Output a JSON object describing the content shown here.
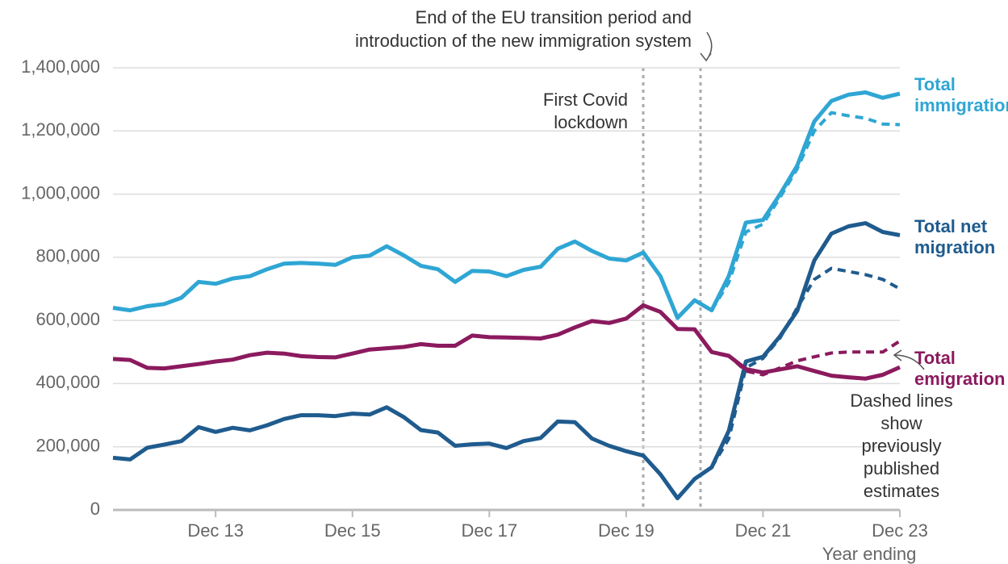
{
  "chart_data": {
    "type": "line",
    "categories": [
      null,
      null,
      null,
      null,
      null,
      null,
      "Dec 13",
      null,
      null,
      null,
      null,
      null,
      null,
      null,
      "Dec 15",
      null,
      null,
      null,
      null,
      null,
      null,
      null,
      "Dec 17",
      null,
      null,
      null,
      null,
      null,
      null,
      null,
      "Dec 19",
      null,
      null,
      null,
      null,
      null,
      null,
      null,
      "Dec 21",
      null,
      null,
      null,
      null,
      null,
      null,
      null,
      "Dec 23"
    ],
    "xlabel": "Year ending",
    "ylim": [
      0,
      1400000
    ],
    "yticks": [
      0,
      {
        "value": 200000,
        "label": "200,000"
      },
      {
        "value": 400000,
        "label": "400,000"
      },
      {
        "value": 600000,
        "label": "600,000"
      },
      {
        "value": 800000,
        "label": "800,000"
      },
      {
        "value": 1000000,
        "label": "1,000,000"
      },
      {
        "value": 1200000,
        "label": "1,200,000"
      },
      {
        "value": 1400000,
        "label": "1,400,000"
      }
    ],
    "grid": true,
    "series": [
      {
        "name": "Total immigration",
        "color": "#2fa6d4",
        "values": [
          640000,
          632000,
          645000,
          652000,
          672000,
          722000,
          716000,
          733000,
          740000,
          762000,
          780000,
          782000,
          780000,
          776000,
          800000,
          805000,
          835000,
          806000,
          773000,
          762000,
          722000,
          757000,
          755000,
          740000,
          760000,
          770000,
          827000,
          850000,
          820000,
          796000,
          790000,
          815000,
          740000,
          608000,
          664000,
          632000,
          740000,
          910000,
          918000,
          1000000,
          1090000,
          1230000,
          1295000,
          1315000,
          1322000,
          1305000,
          1318000
        ],
        "previous": [
          null,
          null,
          null,
          null,
          null,
          null,
          null,
          null,
          null,
          null,
          null,
          null,
          null,
          null,
          null,
          null,
          null,
          null,
          null,
          null,
          null,
          null,
          null,
          null,
          null,
          null,
          null,
          null,
          null,
          null,
          null,
          null,
          null,
          null,
          null,
          632000,
          720000,
          880000,
          905000,
          990000,
          1080000,
          1200000,
          1258000,
          1248000,
          1240000,
          1222000,
          1220000
        ]
      },
      {
        "name": "Total net migration",
        "color": "#1f5b8e",
        "values": [
          165000,
          160000,
          197000,
          207000,
          218000,
          262000,
          247000,
          260000,
          252000,
          268000,
          288000,
          300000,
          300000,
          297000,
          305000,
          302000,
          325000,
          294000,
          253000,
          245000,
          203000,
          208000,
          210000,
          196000,
          218000,
          228000,
          280000,
          278000,
          226000,
          203000,
          186000,
          172000,
          113000,
          37000,
          98000,
          135000,
          250000,
          470000,
          485000,
          550000,
          630000,
          790000,
          875000,
          898000,
          908000,
          880000,
          870000
        ],
        "previous": [
          null,
          null,
          null,
          null,
          null,
          null,
          null,
          null,
          null,
          null,
          null,
          null,
          null,
          null,
          null,
          null,
          null,
          null,
          null,
          null,
          null,
          null,
          null,
          null,
          null,
          null,
          null,
          null,
          null,
          null,
          null,
          null,
          null,
          null,
          null,
          135000,
          225000,
          450000,
          480000,
          545000,
          640000,
          730000,
          765000,
          755000,
          745000,
          730000,
          700000
        ]
      },
      {
        "name": "Total emigration",
        "color": "#8b1a5e",
        "values": [
          478000,
          475000,
          450000,
          448000,
          455000,
          462000,
          470000,
          476000,
          490000,
          498000,
          495000,
          487000,
          484000,
          483000,
          495000,
          508000,
          512000,
          516000,
          525000,
          520000,
          520000,
          552000,
          547000,
          546000,
          545000,
          543000,
          555000,
          578000,
          598000,
          592000,
          606000,
          648000,
          627000,
          573000,
          572000,
          500000,
          488000,
          446000,
          435000,
          445000,
          455000,
          440000,
          425000,
          420000,
          416000,
          428000,
          452000
        ],
        "previous": [
          null,
          null,
          null,
          null,
          null,
          null,
          null,
          null,
          null,
          null,
          null,
          null,
          null,
          null,
          null,
          null,
          null,
          null,
          null,
          null,
          null,
          null,
          null,
          null,
          null,
          null,
          null,
          null,
          null,
          null,
          null,
          null,
          null,
          null,
          null,
          500000,
          488000,
          440000,
          428000,
          450000,
          472000,
          485000,
          497000,
          500000,
          500000,
          500000,
          535000
        ]
      }
    ],
    "annotations": [
      [
        "End of the EU transition period and",
        "introduction of the new immigration system"
      ],
      [
        "First Covid",
        "lockdown"
      ],
      [
        "Dashed lines",
        "show",
        "previously",
        "published",
        "estimates"
      ]
    ]
  }
}
